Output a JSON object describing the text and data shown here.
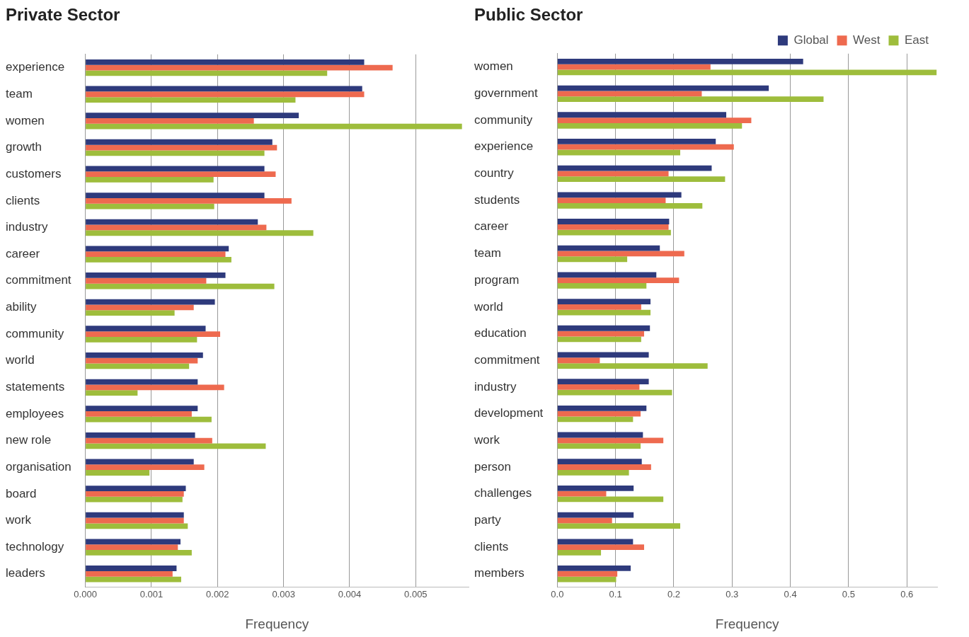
{
  "chart_data": [
    {
      "type": "bar",
      "orientation": "horizontal",
      "title": "Private Sector",
      "xlabel": "Frequency",
      "categories": [
        "experience",
        "team",
        "women",
        "growth",
        "customers",
        "clients",
        "industry",
        "career",
        "commitment",
        "ability",
        "community",
        "world",
        "statements",
        "employees",
        "new role",
        "organisation",
        "board",
        "work",
        "technology",
        "leaders"
      ],
      "series": [
        {
          "color": "#2e3a7c",
          "values": [
            0.00422,
            0.00419,
            0.00323,
            0.00283,
            0.00271,
            0.00271,
            0.00261,
            0.00217,
            0.00212,
            0.00196,
            0.00182,
            0.00178,
            0.0017,
            0.0017,
            0.00166,
            0.00164,
            0.00152,
            0.00149,
            0.00144,
            0.00138
          ]
        },
        {
          "color": "#ee6a4f",
          "values": [
            0.00465,
            0.00422,
            0.00255,
            0.0029,
            0.00288,
            0.00312,
            0.00274,
            0.00212,
            0.00183,
            0.00164,
            0.00204,
            0.0017,
            0.0021,
            0.00161,
            0.00192,
            0.0018,
            0.00149,
            0.00149,
            0.0014,
            0.00132
          ]
        },
        {
          "color": "#9ebd3c",
          "values": [
            0.00366,
            0.00318,
            0.0057,
            0.00271,
            0.00194,
            0.00195,
            0.00345,
            0.00221,
            0.00286,
            0.00135,
            0.00169,
            0.00157,
            0.00079,
            0.00191,
            0.00273,
            0.00097,
            0.00147,
            0.00155,
            0.00161,
            0.00145
          ]
        }
      ],
      "xlim": [
        0,
        0.0058
      ],
      "xticks": [
        {
          "value": 0,
          "label": "0.000"
        },
        0.001,
        0.002,
        0.003,
        0.004,
        0.005
      ],
      "grid": "x",
      "legend": false
    },
    {
      "type": "bar",
      "orientation": "horizontal",
      "title": "Public Sector",
      "xlabel": "Frequency",
      "categories": [
        "women",
        "government",
        "community",
        "experience",
        "country",
        "students",
        "career",
        "team",
        "program",
        "world",
        "education",
        "commitment",
        "industry",
        "development",
        "work",
        "person",
        "challenges",
        "party",
        "clients",
        "members"
      ],
      "series": [
        {
          "name": "Global",
          "color": "#2e3a7c",
          "values": [
            0.422,
            0.363,
            0.29,
            0.272,
            0.265,
            0.213,
            0.192,
            0.176,
            0.17,
            0.16,
            0.159,
            0.157,
            0.157,
            0.153,
            0.147,
            0.145,
            0.131,
            0.131,
            0.13,
            0.126
          ]
        },
        {
          "name": "West",
          "color": "#ee6a4f",
          "values": [
            0.263,
            0.248,
            0.333,
            0.303,
            0.191,
            0.186,
            0.191,
            0.218,
            0.209,
            0.144,
            0.149,
            0.073,
            0.141,
            0.143,
            0.182,
            0.161,
            0.084,
            0.094,
            0.149,
            0.103
          ]
        },
        {
          "name": "East",
          "color": "#9ebd3c",
          "values": [
            0.651,
            0.457,
            0.317,
            0.211,
            0.288,
            0.249,
            0.195,
            0.12,
            0.153,
            0.16,
            0.144,
            0.258,
            0.197,
            0.13,
            0.143,
            0.123,
            0.182,
            0.211,
            0.075,
            0.101
          ]
        }
      ],
      "xlim": [
        0,
        0.652
      ],
      "xticks": [
        {
          "value": 0,
          "label": "0.0"
        },
        0.1,
        0.2,
        0.3,
        0.4,
        0.5,
        0.6
      ],
      "grid": "x",
      "legend": "top right"
    }
  ]
}
